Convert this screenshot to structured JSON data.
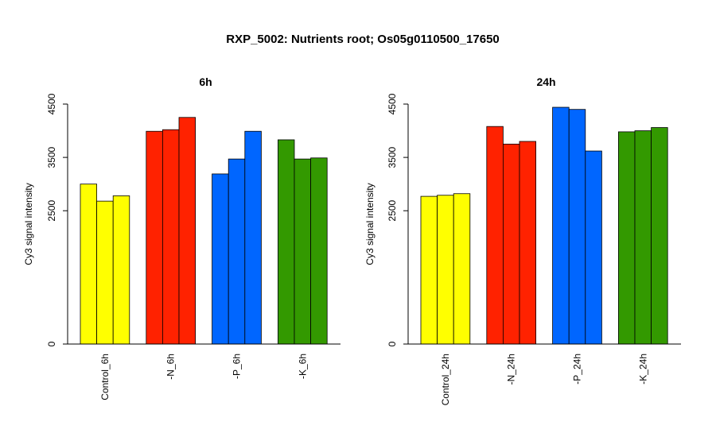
{
  "figure": {
    "title": "RXP_5002: Nutrients root; Os05g0110500_17650"
  },
  "chart_data": [
    {
      "type": "bar",
      "title": "6h",
      "xlabel": "",
      "ylabel": "Cy3 signal intensity",
      "ylim": [
        0,
        4500
      ],
      "yticks": [
        0,
        2500,
        3500,
        4500
      ],
      "grid": false,
      "categories": [
        "Control_6h",
        "-N_6h",
        "-P_6h",
        "-K_6h"
      ],
      "colors": [
        "#ffff00",
        "#ff2200",
        "#0066ff",
        "#339900"
      ],
      "groups": [
        {
          "category": "Control_6h",
          "values": [
            3000,
            2680,
            2780
          ]
        },
        {
          "category": "-N_6h",
          "values": [
            3990,
            4020,
            4250
          ]
        },
        {
          "category": "-P_6h",
          "values": [
            3190,
            3470,
            3990
          ]
        },
        {
          "category": "-K_6h",
          "values": [
            3830,
            3470,
            3490
          ]
        }
      ]
    },
    {
      "type": "bar",
      "title": "24h",
      "xlabel": "",
      "ylabel": "Cy3 signal intensity",
      "ylim": [
        0,
        4500
      ],
      "yticks": [
        0,
        2500,
        3500,
        4500
      ],
      "grid": false,
      "categories": [
        "Control_24h",
        "-N_24h",
        "-P_24h",
        "-K_24h"
      ],
      "colors": [
        "#ffff00",
        "#ff2200",
        "#0066ff",
        "#339900"
      ],
      "groups": [
        {
          "category": "Control_24h",
          "values": [
            2770,
            2790,
            2820
          ]
        },
        {
          "category": "-N_24h",
          "values": [
            4080,
            3750,
            3800
          ]
        },
        {
          "category": "-P_24h",
          "values": [
            4440,
            4400,
            3620
          ]
        },
        {
          "category": "-K_24h",
          "values": [
            3980,
            4000,
            4060
          ]
        }
      ]
    }
  ]
}
